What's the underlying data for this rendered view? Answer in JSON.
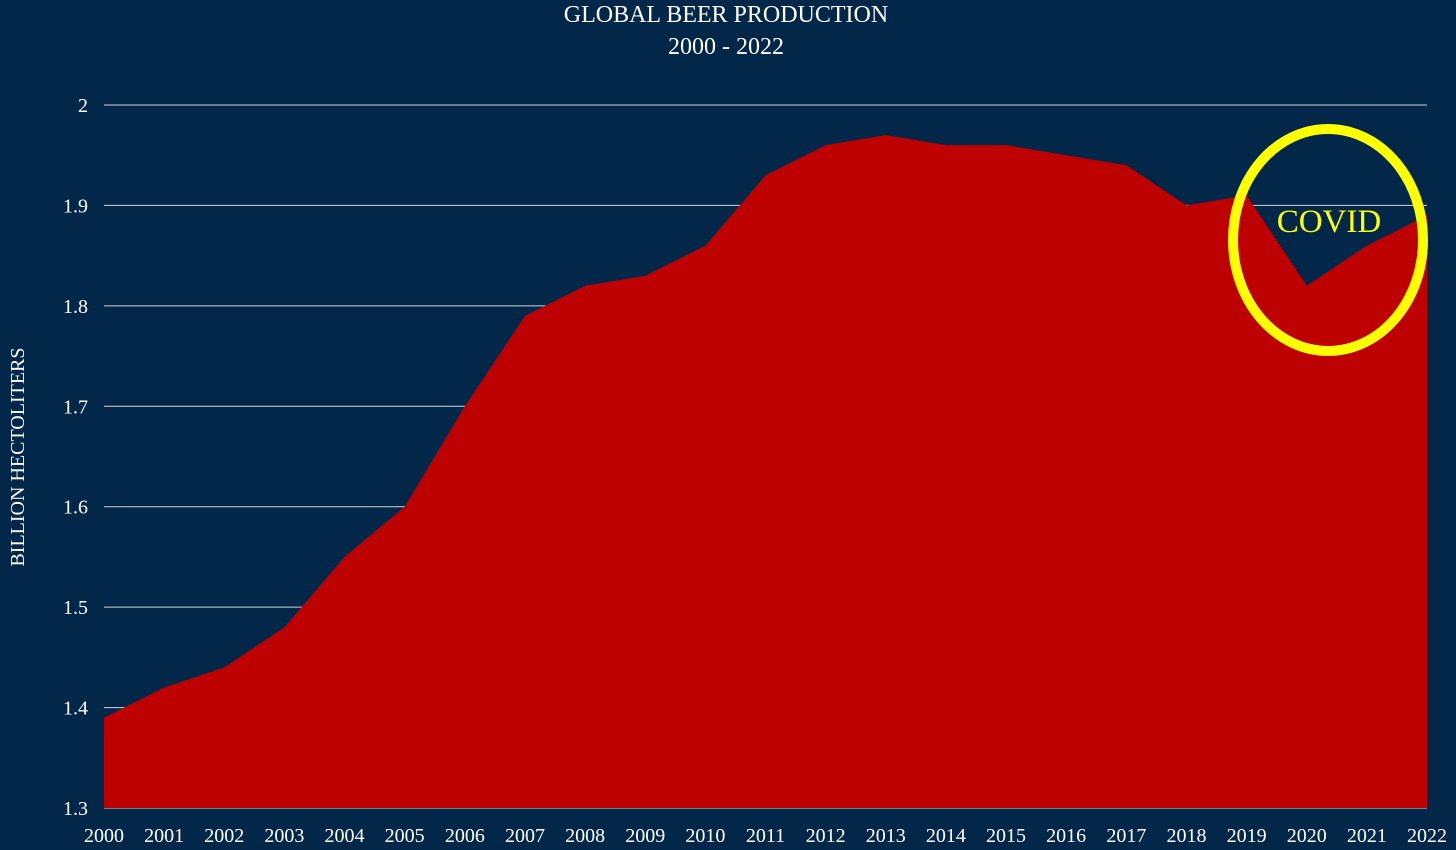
{
  "chart_data": {
    "type": "area",
    "title": "GLOBAL BEER PRODUCTION",
    "subtitle": "2000 - 2022",
    "xlabel": "",
    "ylabel": "BILLION HECTOLITERS",
    "categories": [
      "2000",
      "2001",
      "2002",
      "2003",
      "2004",
      "2005",
      "2006",
      "2007",
      "2008",
      "2009",
      "2010",
      "2011",
      "2012",
      "2013",
      "2014",
      "2015",
      "2016",
      "2017",
      "2018",
      "2019",
      "2020",
      "2021",
      "2022"
    ],
    "series": [
      {
        "name": "Global Beer Production",
        "values": [
          1.39,
          1.42,
          1.44,
          1.48,
          1.55,
          1.6,
          1.7,
          1.79,
          1.82,
          1.83,
          1.86,
          1.93,
          1.96,
          1.97,
          1.96,
          1.96,
          1.95,
          1.94,
          1.9,
          1.91,
          1.82,
          1.86,
          1.89
        ]
      }
    ],
    "ylim": [
      1.3,
      2.0
    ],
    "yticks": [
      1.3,
      1.4,
      1.5,
      1.6,
      1.7,
      1.8,
      1.9,
      2.0
    ],
    "ytick_labels": [
      "1.3",
      "1.4",
      "1.5",
      "1.6",
      "1.7",
      "1.8",
      "1.9",
      "2"
    ],
    "grid": true,
    "annotations": [
      {
        "text": "COVID",
        "x_from": "2019",
        "x_to": "2022",
        "shape": "ellipse"
      }
    ],
    "colors": {
      "background": "#022748",
      "area": "#bd0000",
      "gridline": "#d0d6dd",
      "annotation": "#ffff00",
      "text": "#ffffff"
    }
  }
}
